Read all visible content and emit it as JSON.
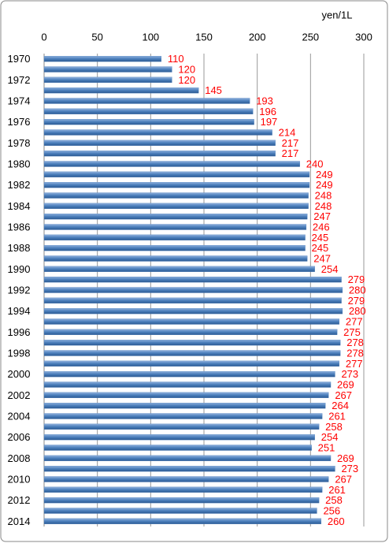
{
  "chart_data": {
    "type": "barh",
    "unit_label": "yen/1L",
    "categories": [
      "1970",
      null,
      "1972",
      null,
      "1974",
      null,
      "1976",
      null,
      "1978",
      null,
      "1980",
      null,
      "1982",
      null,
      "1984",
      null,
      "1986",
      null,
      "1988",
      null,
      "1990",
      null,
      "1992",
      null,
      "1994",
      null,
      "1996",
      null,
      "1998",
      null,
      "2000",
      null,
      "2002",
      null,
      "2004",
      null,
      "2006",
      null,
      "2008",
      null,
      "2010",
      null,
      "2012",
      null,
      "2014"
    ],
    "values": [
      110,
      120,
      120,
      145,
      193,
      196,
      197,
      214,
      217,
      217,
      240,
      249,
      249,
      248,
      248,
      247,
      246,
      245,
      245,
      247,
      254,
      279,
      280,
      279,
      280,
      277,
      275,
      278,
      278,
      277,
      273,
      269,
      267,
      264,
      261,
      258,
      254,
      251,
      269,
      273,
      267,
      261,
      258,
      256,
      260
    ],
    "color": "#4a7ebb",
    "label_color": "#ff0000",
    "xlim": [
      0,
      300
    ],
    "xticks": [
      0,
      50,
      100,
      150,
      200,
      250,
      300
    ],
    "grid": true
  }
}
